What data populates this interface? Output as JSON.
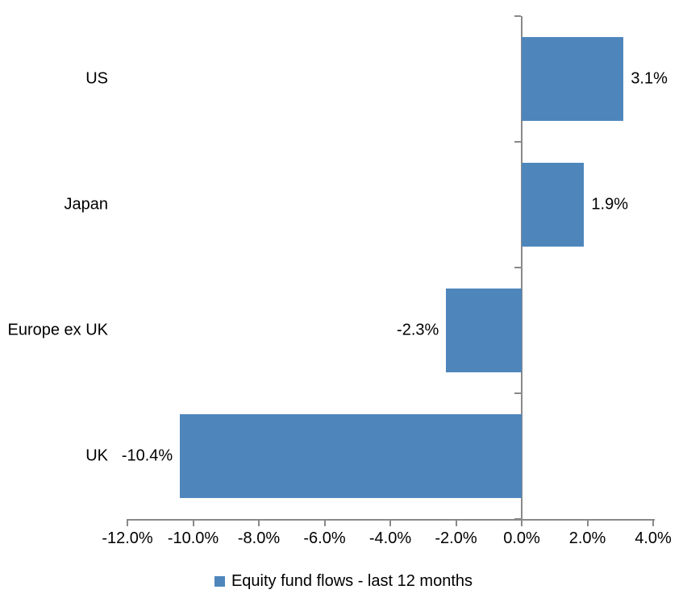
{
  "chart_data": {
    "type": "bar",
    "orientation": "horizontal",
    "title": "",
    "xlabel": "",
    "ylabel": "",
    "categories": [
      "US",
      "Japan",
      "Europe ex UK",
      "UK"
    ],
    "values": [
      3.1,
      1.9,
      -2.3,
      -10.4
    ],
    "data_labels": [
      "3.1%",
      "1.9%",
      "-2.3%",
      "-10.4%"
    ],
    "series": [
      {
        "name": "Equity fund flows - last 12 months",
        "values": [
          3.1,
          1.9,
          -2.3,
          -10.4
        ]
      }
    ],
    "xlim": [
      -12,
      4
    ],
    "x_ticks": [
      {
        "value": -12,
        "label": "-12.0%"
      },
      {
        "value": -10,
        "label": "-10.0%"
      },
      {
        "value": -8,
        "label": "-8.0%"
      },
      {
        "value": -6,
        "label": "-6.0%"
      },
      {
        "value": -4,
        "label": "-4.0%"
      },
      {
        "value": -2,
        "label": "-2.0%"
      },
      {
        "value": 0,
        "label": "0.0%"
      },
      {
        "value": 2,
        "label": "2.0%"
      },
      {
        "value": 4,
        "label": "4.0%"
      }
    ],
    "grid": false,
    "legend": {
      "label": "Equity fund flows - last 12 months",
      "position": "bottom"
    },
    "colors": {
      "bar": "#4E86BC",
      "axis": "#898989",
      "text": "#000000",
      "background": "#FFFFFF"
    }
  }
}
